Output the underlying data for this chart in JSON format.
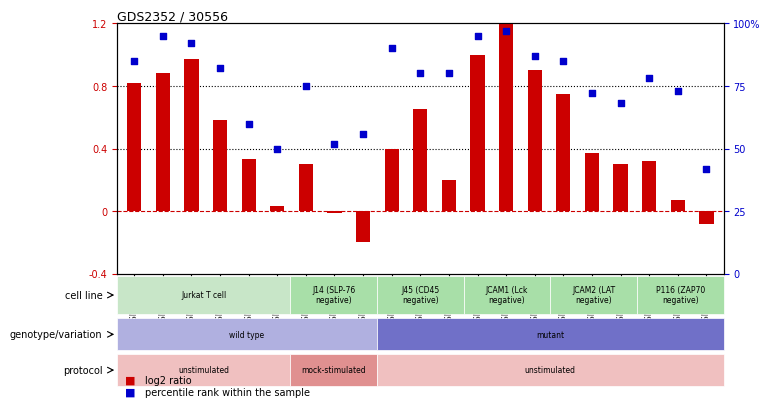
{
  "title": "GDS2352 / 30556",
  "samples": [
    "GSM89762",
    "GSM89765",
    "GSM89767",
    "GSM89759",
    "GSM89760",
    "GSM89764",
    "GSM89753",
    "GSM89755",
    "GSM89771",
    "GSM89756",
    "GSM89757",
    "GSM89758",
    "GSM89761",
    "GSM89763",
    "GSM89773",
    "GSM89766",
    "GSM89768",
    "GSM89770",
    "GSM89754",
    "GSM89769",
    "GSM89772"
  ],
  "log2_ratio": [
    0.82,
    0.88,
    0.97,
    0.58,
    0.33,
    0.03,
    0.3,
    -0.01,
    -0.2,
    0.4,
    0.65,
    0.2,
    1.0,
    1.2,
    0.9,
    0.75,
    0.37,
    0.3,
    0.32,
    0.07,
    -0.08
  ],
  "percentile": [
    85,
    95,
    92,
    82,
    60,
    50,
    75,
    52,
    56,
    90,
    80,
    80,
    95,
    97,
    87,
    85,
    72,
    68,
    78,
    73,
    42
  ],
  "ylim_left": [
    -0.4,
    1.2
  ],
  "ylim_right": [
    0,
    100
  ],
  "cell_lines": [
    {
      "label": "Jurkat T cell",
      "start": 0,
      "end": 6,
      "color": "#c8e6c8"
    },
    {
      "label": "J14 (SLP-76\nnegative)",
      "start": 6,
      "end": 9,
      "color": "#a8dfa8"
    },
    {
      "label": "J45 (CD45\nnegative)",
      "start": 9,
      "end": 12,
      "color": "#a8dfa8"
    },
    {
      "label": "JCAM1 (Lck\nnegative)",
      "start": 12,
      "end": 15,
      "color": "#a8dfa8"
    },
    {
      "label": "JCAM2 (LAT\nnegative)",
      "start": 15,
      "end": 18,
      "color": "#a8dfa8"
    },
    {
      "label": "P116 (ZAP70\nnegative)",
      "start": 18,
      "end": 21,
      "color": "#a8dfa8"
    }
  ],
  "genotype": [
    {
      "label": "wild type",
      "start": 0,
      "end": 9,
      "color": "#b0b0e0"
    },
    {
      "label": "mutant",
      "start": 9,
      "end": 21,
      "color": "#7070c8"
    }
  ],
  "protocol": [
    {
      "label": "unstimulated",
      "start": 0,
      "end": 6,
      "color": "#f0c0c0"
    },
    {
      "label": "mock-stimulated",
      "start": 6,
      "end": 9,
      "color": "#e09090"
    },
    {
      "label": "unstimulated",
      "start": 9,
      "end": 21,
      "color": "#f0c0c0"
    }
  ],
  "bar_color": "#cc0000",
  "dot_color": "#0000cc",
  "hline_color": "#cc0000",
  "dotted_line_color": "#000000",
  "background_color": "#ffffff"
}
